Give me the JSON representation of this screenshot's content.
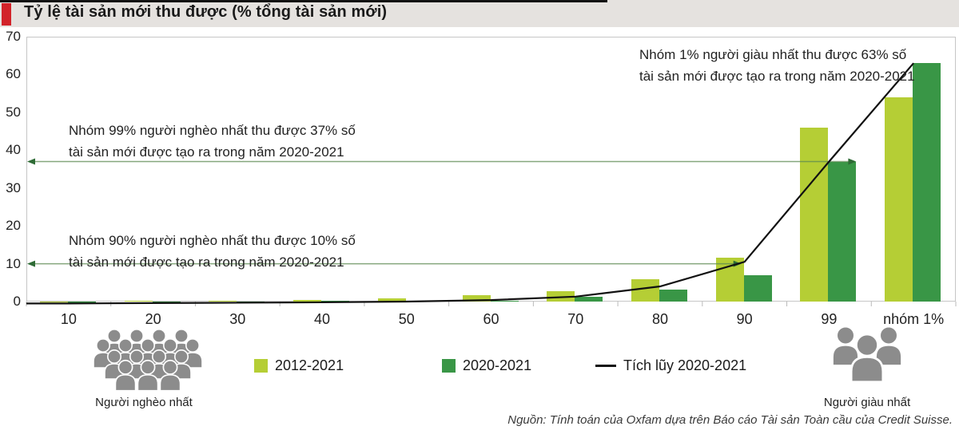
{
  "header": {
    "title": "Tỷ lệ tài sản mới thu được (% tổng tài sản mới)"
  },
  "chart_data": {
    "type": "bar",
    "categories": [
      "10",
      "20",
      "30",
      "40",
      "50",
      "60",
      "70",
      "80",
      "90",
      "99",
      "nhóm 1%"
    ],
    "series": [
      {
        "name": "2012-2021",
        "kind": "bar",
        "color": "#b5ce35",
        "values": [
          -0.3,
          0.2,
          0.3,
          0.5,
          0.8,
          1.7,
          2.8,
          6,
          11.5,
          46,
          54
        ]
      },
      {
        "name": "2020-2021",
        "kind": "bar",
        "color": "#399646",
        "values": [
          -0.5,
          0.05,
          0.1,
          0.15,
          0.25,
          0.3,
          1.2,
          3.2,
          7,
          37,
          63
        ]
      },
      {
        "name": "Tích lũy 2020-2021",
        "kind": "line",
        "color": "#111111",
        "values": [
          -0.5,
          -0.4,
          -0.3,
          -0.2,
          0,
          0.4,
          1.3,
          4,
          10.5,
          37,
          63
        ]
      }
    ],
    "title": "Tỷ lệ tài sản mới thu được (% tổng tài sản mới)",
    "xlabel": "",
    "ylabel": "",
    "ylim": [
      0,
      70
    ],
    "yticks": [
      0,
      10,
      20,
      30,
      40,
      50,
      60,
      70
    ],
    "grid": false,
    "legend_position": "bottom"
  },
  "annotations": {
    "rich1": {
      "lines": [
        "Nhóm 1% người giàu nhất thu được 63% số",
        "tài sản mới được tạo ra trong năm 2020-2021"
      ]
    },
    "poor99": {
      "lines": [
        "Nhóm 99% người nghèo nhất thu được 37% số",
        "tài sản mới được tạo ra trong năm 2020-2021"
      ],
      "arrow_value": 37
    },
    "poor90": {
      "lines": [
        "Nhóm 90% người nghèo nhất thu được 10% số",
        "tài sản mới được tạo ra trong năm 2020-2021"
      ],
      "arrow_value": 10
    }
  },
  "legend": {
    "items": [
      {
        "label": "2012-2021",
        "swatch": "#b5ce35",
        "type": "square"
      },
      {
        "label": "2020-2021",
        "swatch": "#399646",
        "type": "square"
      },
      {
        "label": "Tích lũy 2020-2021",
        "swatch": "#111111",
        "type": "line"
      }
    ]
  },
  "footer": {
    "poorest_label": "Người nghèo nhất",
    "richest_label": "Người giàu nhất",
    "source": "Nguồn: Tính toán của Oxfam dựa trên Báo cáo Tài sản Toàn cầu của Credit Suisse."
  },
  "colors": {
    "accent_red": "#d2232a",
    "band_gray": "#e5e2df",
    "light_green": "#b5ce35",
    "dark_green": "#399646",
    "cumulative_line": "#111111",
    "arrow_green": "#5d8a52",
    "axis_gray": "#c6c6c6",
    "icon_gray": "#8c8c8c"
  }
}
